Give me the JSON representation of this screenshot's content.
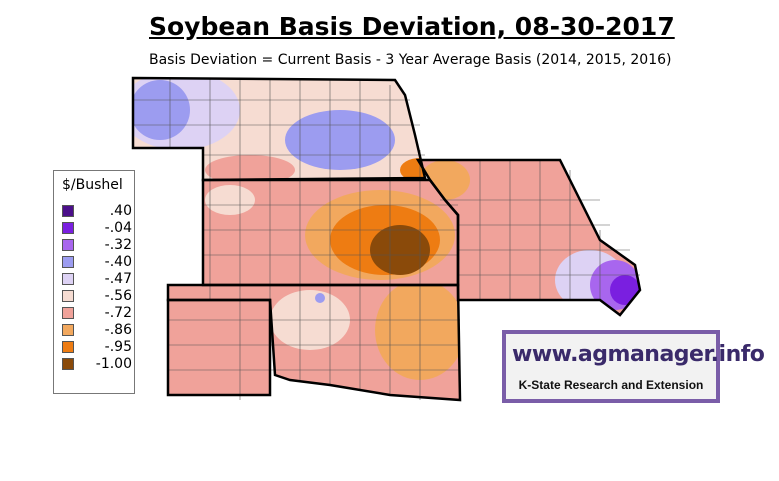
{
  "title": "Soybean Basis Deviation, 08-30-2017",
  "subtitle": "Basis Deviation = Current Basis - 3 Year Average Basis (2014, 2015, 2016)",
  "legend": {
    "title": "$/Bushel",
    "items": [
      {
        "label": ".40",
        "color": "#4b0f8a"
      },
      {
        "label": "-.04",
        "color": "#7a1fe0"
      },
      {
        "label": "-.32",
        "color": "#a866ee"
      },
      {
        "label": "-.40",
        "color": "#9c9cf0"
      },
      {
        "label": "-.47",
        "color": "#ddd2f4"
      },
      {
        "label": "-.56",
        "color": "#f6dcd2"
      },
      {
        "label": "-.72",
        "color": "#f0a29a"
      },
      {
        "label": "-.86",
        "color": "#f2a85e"
      },
      {
        "label": "-.95",
        "color": "#ee7c12"
      },
      {
        "label": "-1.00",
        "color": "#8a4a0a"
      }
    ]
  },
  "logo": {
    "url": "www.agmanager.info",
    "org": "K-State Research and Extension"
  }
}
